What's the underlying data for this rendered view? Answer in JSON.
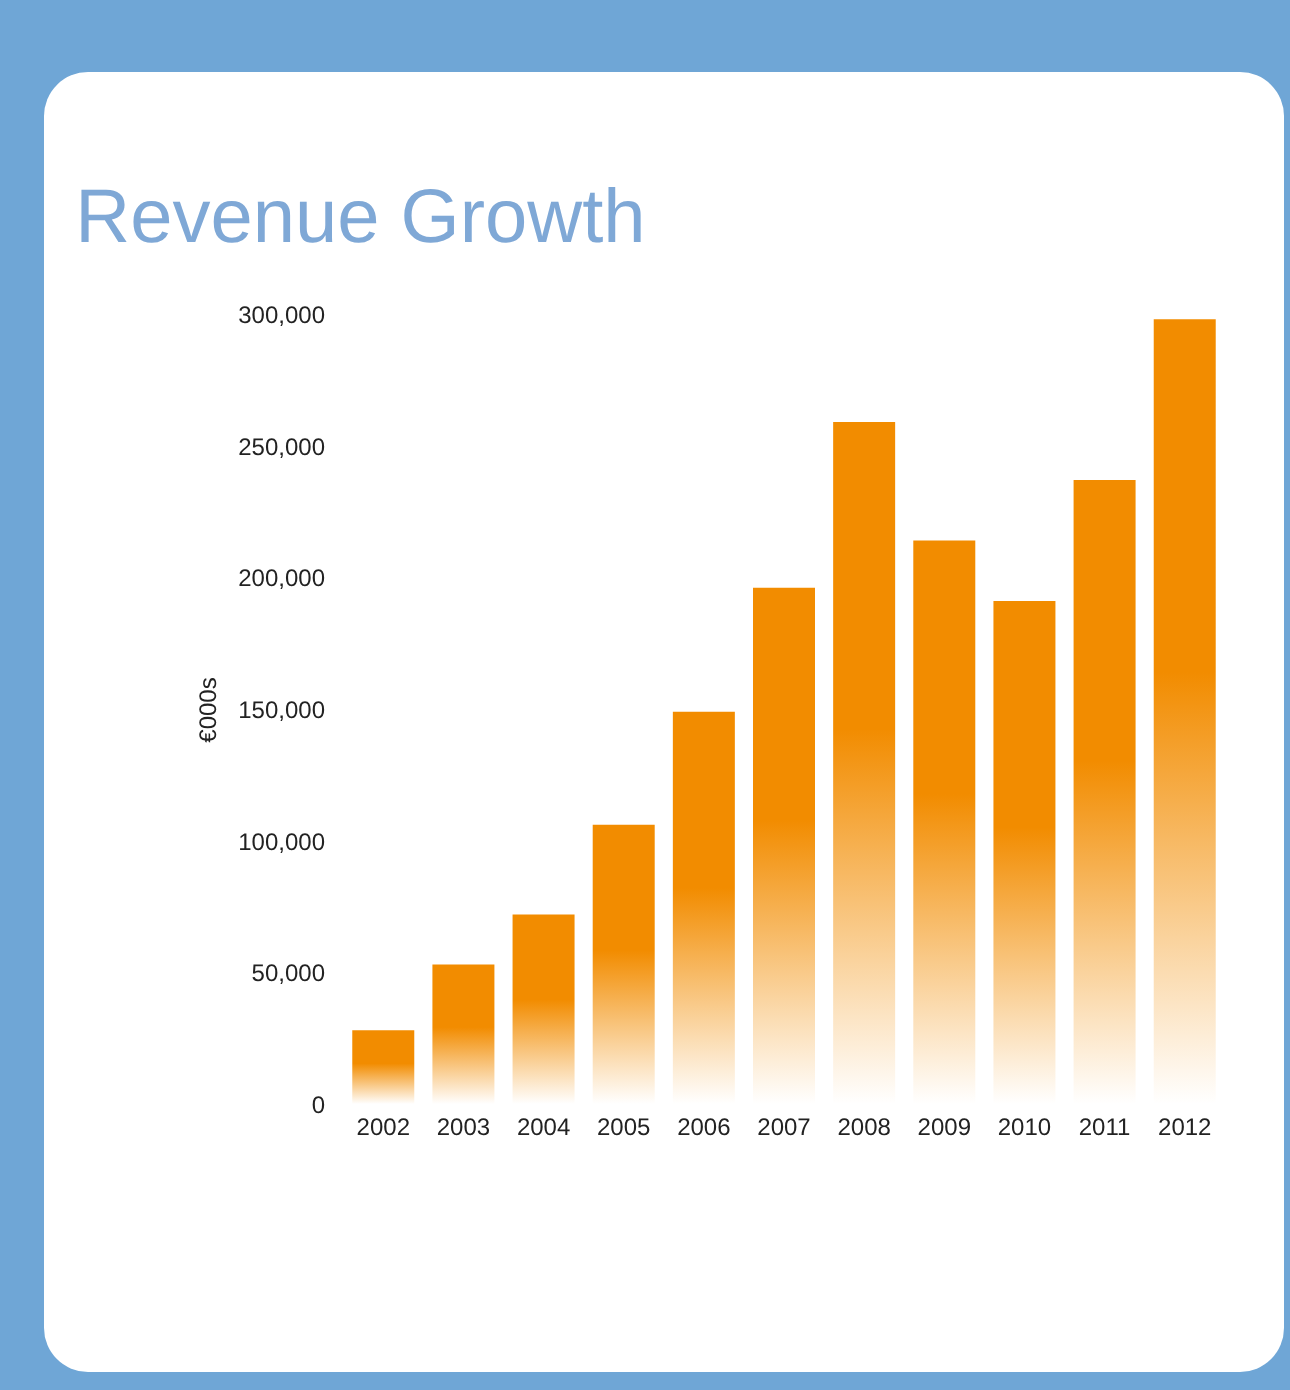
{
  "chart_data": {
    "type": "bar",
    "title": "Revenue Growth",
    "ylabel": "€000s",
    "categories": [
      "2002",
      "2003",
      "2004",
      "2005",
      "2006",
      "2007",
      "2008",
      "2009",
      "2010",
      "2011",
      "2012"
    ],
    "values": [
      28000,
      53000,
      72000,
      106000,
      149000,
      196000,
      259000,
      214000,
      191000,
      237000,
      298000
    ],
    "color": "#f28c00",
    "ylim": [
      0,
      300000
    ],
    "yticks": [
      0,
      {
        "value": 50000,
        "label": "50,000"
      },
      {
        "value": 100000,
        "label": "100,000"
      },
      {
        "value": 150000,
        "label": "150,000"
      },
      {
        "value": 200000,
        "label": "200,000"
      },
      {
        "value": 250000,
        "label": "250,000"
      },
      {
        "value": 300000,
        "label": "300,000"
      }
    ],
    "grid": false
  }
}
